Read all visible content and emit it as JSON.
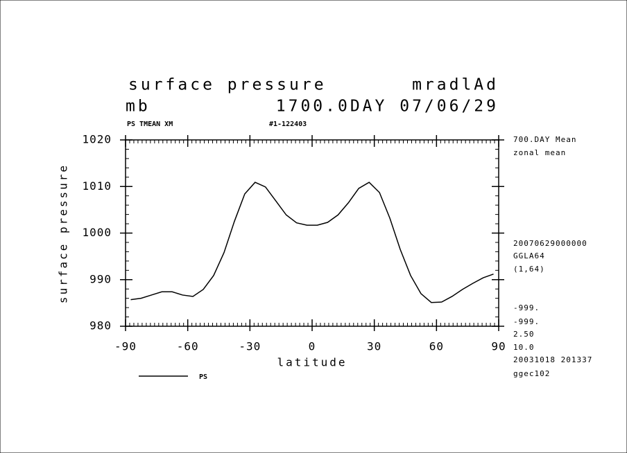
{
  "chart_data": {
    "type": "line",
    "title": "surface pressure",
    "title_right": "mradlAd",
    "subtitle": "mb",
    "subtitle_right": "1700.0DAY 07/06/29",
    "header_left": "PS TMEAN XM",
    "header_mid": "#1-122403",
    "xlabel": "latitude",
    "ylabel": "surface pressure",
    "side_notes": [
      "700.DAY Mean",
      "zonal mean",
      "20070629000000",
      "GGLA64",
      "(1,64)",
      "-999.",
      "-999.",
      "2.50",
      "10.0",
      "20031018 201337",
      "ggec102"
    ],
    "x": [
      -87.5,
      -82.5,
      -77.5,
      -72.5,
      -67.5,
      -62.5,
      -57.5,
      -52.5,
      -47.5,
      -42.5,
      -37.5,
      -32.5,
      -27.5,
      -22.5,
      -17.5,
      -12.5,
      -7.5,
      -2.5,
      2.5,
      7.5,
      12.5,
      17.5,
      22.5,
      27.5,
      32.5,
      37.5,
      42.5,
      47.5,
      52.5,
      57.5,
      62.5,
      67.5,
      72.5,
      77.5,
      82.5,
      87.5
    ],
    "series": [
      {
        "name": "PS",
        "color": "#000000",
        "values": [
          985.7,
          986.0,
          986.7,
          987.4,
          987.4,
          986.7,
          986.4,
          987.9,
          990.9,
          995.8,
          1002.5,
          1008.4,
          1010.9,
          1009.9,
          1006.9,
          1003.9,
          1002.2,
          1001.7,
          1001.7,
          1002.3,
          1003.9,
          1006.5,
          1009.6,
          1010.9,
          1008.7,
          1003.2,
          996.5,
          990.9,
          987.0,
          985.1,
          985.2,
          986.4,
          987.9,
          989.2,
          990.4,
          991.2
        ]
      }
    ],
    "xlim": [
      -90,
      90
    ],
    "xticks": [
      -90,
      -60,
      -30,
      0,
      30,
      60,
      90
    ],
    "ylim": [
      980,
      1020
    ],
    "yticks": [
      980,
      990,
      1000,
      1010,
      1020
    ]
  }
}
